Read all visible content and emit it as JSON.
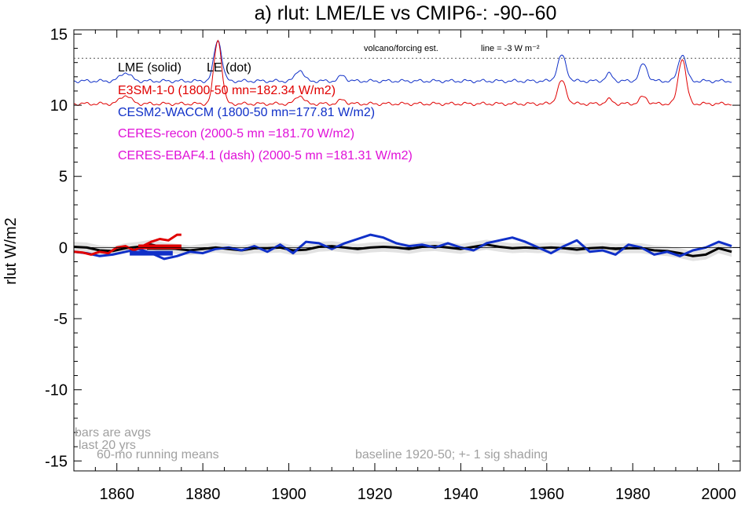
{
  "chart_data": {
    "type": "line",
    "title": "a) rlut: LME/LE vs CMIP6-: -90--60",
    "ylabel": "rlut W/m2",
    "xlabel": "",
    "xlim": [
      1850,
      2005
    ],
    "ylim": [
      -15.7,
      15.3
    ],
    "x_ticks": [
      1860,
      1880,
      1900,
      1920,
      1940,
      1960,
      1980,
      2000
    ],
    "y_ticks": [
      -15,
      -10,
      -5,
      0,
      5,
      10,
      15
    ],
    "grid": false,
    "legend_position": "top-left",
    "legend": {
      "header_solid": "LME (solid)",
      "header_dot": "LE (dot)",
      "entries": [
        {
          "label": "E3SM-1-0 (1800-50 mn=182.34 W/m2)",
          "color": "#e00000"
        },
        {
          "label": "CESM2-WACCM (1800-50 mn=177.81 W/m2)",
          "color": "#1030c8"
        },
        {
          "label": "CERES-recon (2000-5 mn =181.70 W/m2)",
          "color": "#e010d8"
        },
        {
          "label": "CERES-EBAF4.1 (dash) (2000-5 mn =181.31 W/m2)",
          "color": "#e010d8"
        }
      ]
    },
    "reference_line": {
      "y": 13.3,
      "style": "dotted",
      "label_left": "volcano/forcing est.",
      "label_right": "line = -3 W m⁻²"
    },
    "annotations": {
      "bars_note_1": "bars are avgs",
      "bars_note_2": "last 20 yrs",
      "running_means": "60-mo running means",
      "baseline": "baseline 1920-50; +- 1 sig shading"
    },
    "series": [
      {
        "name": "LME (solid)",
        "color": "#000000",
        "x": [
          1850,
          1853,
          1856,
          1859,
          1862,
          1865,
          1868,
          1871,
          1874,
          1877,
          1880,
          1883,
          1886,
          1889,
          1892,
          1895,
          1898,
          1901,
          1904,
          1907,
          1910,
          1913,
          1916,
          1919,
          1922,
          1925,
          1928,
          1931,
          1934,
          1937,
          1940,
          1943,
          1946,
          1949,
          1952,
          1955,
          1958,
          1961,
          1964,
          1967,
          1970,
          1973,
          1976,
          1979,
          1982,
          1985,
          1988,
          1991,
          1994,
          1997,
          2000,
          2003
        ],
        "y": [
          0.05,
          0.0,
          -0.2,
          -0.25,
          -0.05,
          0.05,
          0.2,
          0.0,
          -0.1,
          -0.2,
          -0.1,
          0.0,
          -0.1,
          -0.2,
          -0.05,
          -0.05,
          0.0,
          -0.2,
          -0.15,
          0.05,
          0.1,
          0.0,
          -0.1,
          0.0,
          0.05,
          0.0,
          -0.1,
          0.05,
          0.1,
          0.0,
          -0.1,
          0.05,
          0.2,
          0.05,
          -0.05,
          0.0,
          -0.05,
          0.0,
          -0.05,
          -0.15,
          -0.05,
          0.0,
          -0.1,
          -0.05,
          -0.05,
          -0.2,
          -0.25,
          -0.4,
          -0.6,
          -0.5,
          -0.05,
          -0.3
        ],
        "band_sigma": 0.35
      },
      {
        "name": "CESM2-WACCM",
        "color": "#1030c8",
        "x": [
          1850,
          1853,
          1856,
          1859,
          1862,
          1865,
          1868,
          1871,
          1874,
          1877,
          1880,
          1883,
          1886,
          1889,
          1892,
          1895,
          1898,
          1901,
          1904,
          1907,
          1910,
          1913,
          1916,
          1919,
          1922,
          1925,
          1928,
          1931,
          1934,
          1937,
          1940,
          1943,
          1946,
          1949,
          1952,
          1955,
          1958,
          1961,
          1964,
          1967,
          1970,
          1973,
          1976,
          1979,
          1982,
          1985,
          1988,
          1991,
          1994,
          1997,
          2000,
          2003
        ],
        "y": [
          -0.3,
          -0.4,
          -0.6,
          -0.5,
          -0.3,
          -0.1,
          -0.4,
          -0.8,
          -0.6,
          -0.3,
          -0.4,
          -0.1,
          0.0,
          -0.2,
          0.1,
          -0.3,
          0.2,
          -0.4,
          0.4,
          0.3,
          -0.1,
          0.3,
          0.6,
          0.9,
          0.7,
          0.3,
          0.1,
          0.2,
          0.0,
          0.3,
          0.0,
          -0.2,
          0.3,
          0.5,
          0.7,
          0.4,
          0.0,
          -0.4,
          0.1,
          0.5,
          -0.3,
          -0.2,
          -0.5,
          0.2,
          0.0,
          -0.5,
          -0.3,
          -0.6,
          -0.2,
          0.0,
          0.4,
          0.1
        ]
      },
      {
        "name": "E3SM-1-0",
        "color": "#e00000",
        "x": [
          1850,
          1852,
          1854,
          1856,
          1858,
          1860,
          1862,
          1864,
          1866,
          1868,
          1870,
          1872,
          1874,
          1875
        ],
        "y": [
          -0.3,
          -0.35,
          -0.5,
          -0.3,
          -0.4,
          0.0,
          0.1,
          -0.2,
          0.1,
          0.4,
          0.6,
          0.5,
          0.9,
          0.9
        ]
      }
    ],
    "last20_bars": [
      {
        "series": "LME",
        "color": "#000000",
        "x_from": 1867,
        "x_to": 1875,
        "value": 0.0
      },
      {
        "series": "E3SM-1-0",
        "color": "#e00000",
        "x_from": 1865,
        "x_to": 1875,
        "value": 0.05
      },
      {
        "series": "CESM2-WACCM",
        "color": "#1030c8",
        "x_from": 1863,
        "x_to": 1873,
        "value": -0.4
      }
    ],
    "forcing_top": {
      "name": "CESM2-WACCM forcing",
      "color": "#1030c8",
      "baseline": 11.7,
      "spikes": [
        [
          1862,
          0.6,
          1.2
        ],
        [
          1883.5,
          2.9,
          0.9
        ],
        [
          1902.5,
          0.8,
          0.9
        ],
        [
          1912.5,
          0.4,
          0.8
        ],
        [
          1963.5,
          1.8,
          1.0
        ],
        [
          1974.5,
          0.5,
          0.8
        ],
        [
          1982.5,
          1.2,
          0.9
        ],
        [
          1991.5,
          1.9,
          0.9
        ]
      ]
    },
    "forcing_bottom": {
      "name": "E3SM-1-0 forcing",
      "color": "#e00000",
      "baseline": 10.1,
      "spikes": [
        [
          1862,
          0.6,
          1.2
        ],
        [
          1883.5,
          4.5,
          0.9
        ],
        [
          1902.5,
          0.6,
          0.9
        ],
        [
          1912.5,
          0.3,
          0.8
        ],
        [
          1963.5,
          1.6,
          1.0
        ],
        [
          1974.5,
          0.3,
          0.8
        ],
        [
          1982.5,
          0.5,
          0.9
        ],
        [
          1991.5,
          3.2,
          0.9
        ]
      ]
    }
  }
}
